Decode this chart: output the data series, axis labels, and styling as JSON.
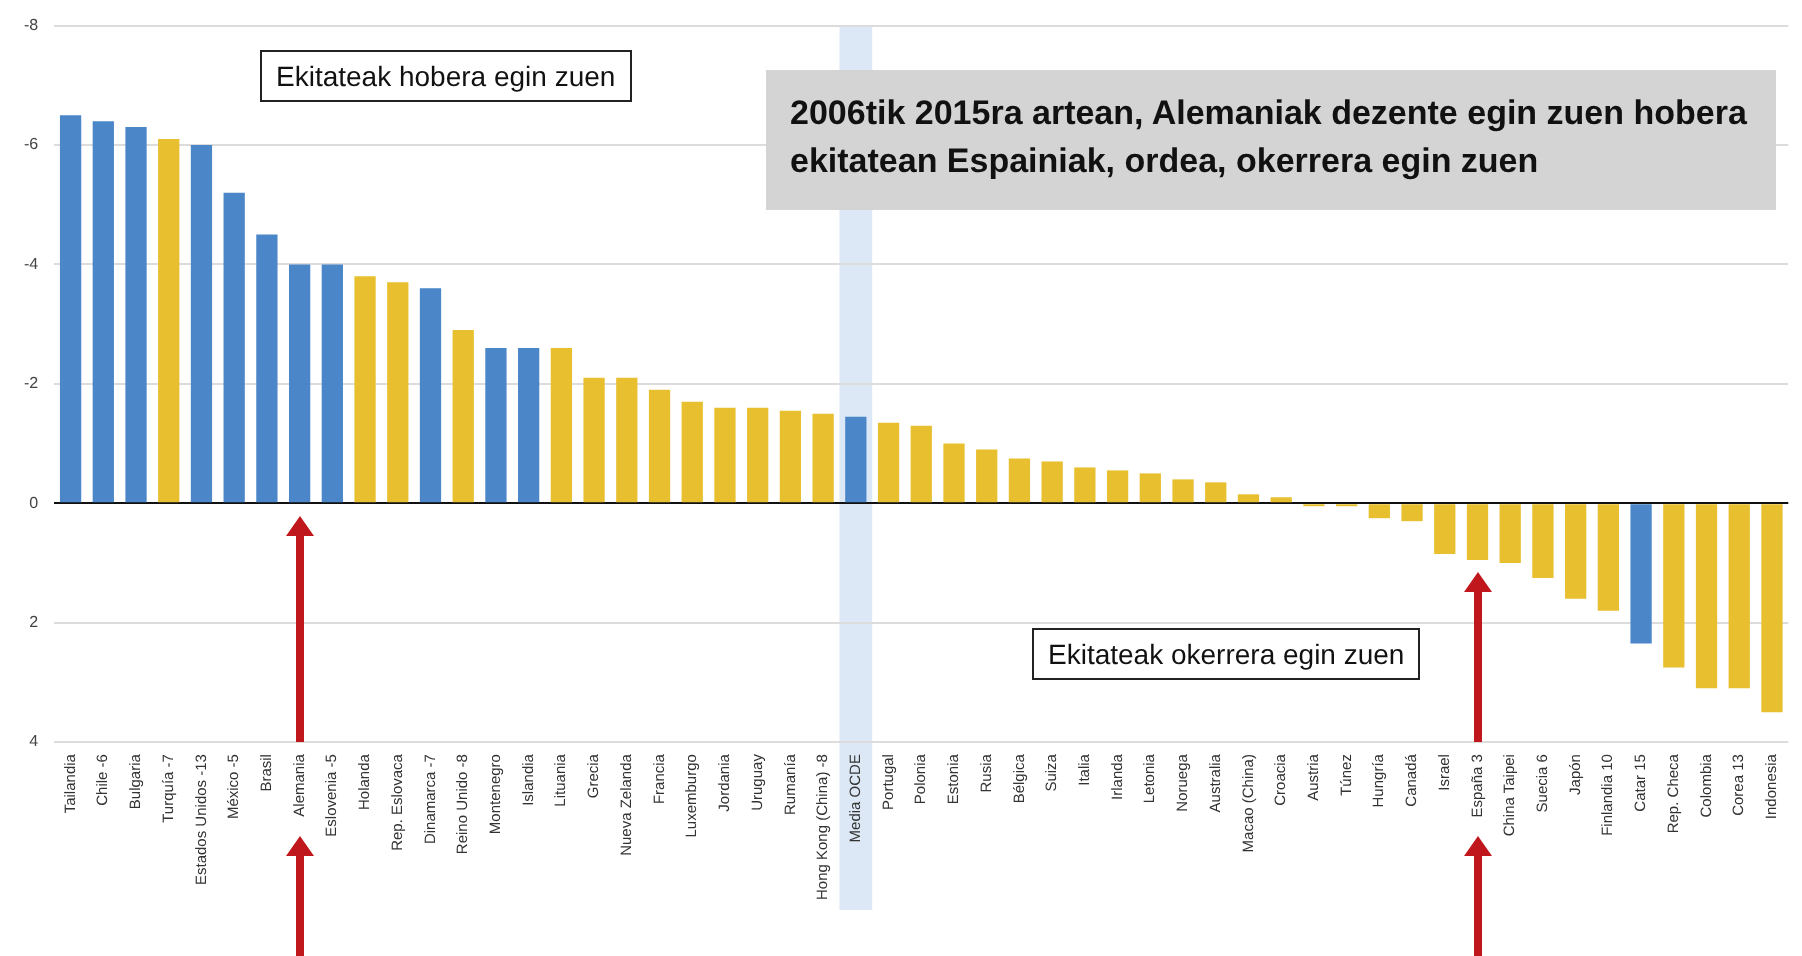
{
  "chart_data": {
    "type": "bar",
    "title": "2006tik 2015ra artean, Alemaniak dezente egin zuen hobera ekitatean Espainiak, ordea, okerrera egin zuen",
    "categories": [
      "Tailandia",
      "Chile -6",
      "Bulgaria",
      "Turquía -7",
      "Estados Unidos -13",
      "México -5",
      "Brasil",
      "Alemania",
      "Eslovenia -5",
      "Holanda",
      "Rep. Eslovaca",
      "Dinamarca -7",
      "Reino Unido -8",
      "Montenegro",
      "Islandia",
      "Lituania",
      "Grecia",
      "Nueva Zelanda",
      "Francia",
      "Luxemburgo",
      "Jordania",
      "Uruguay",
      "Rumanía",
      "Hong Kong (China) -8",
      "Media OCDE",
      "Portugal",
      "Polonia",
      "Estonia",
      "Rusia",
      "Bélgica",
      "Suiza",
      "Italia",
      "Irlanda",
      "Letonia",
      "Noruega",
      "Australia",
      "Macao (China)",
      "Croacia",
      "Austria",
      "Túnez",
      "Hungría",
      "Canadá",
      "Israel",
      "España 3",
      "China Taipei",
      "Suecia 6",
      "Japón",
      "Finlandia 10",
      "Catar 15",
      "Rep. Checa",
      "Colombia",
      "Corea 13",
      "Indonesia"
    ],
    "values": [
      -6.5,
      -6.4,
      -6.3,
      -6.1,
      -6.0,
      -5.2,
      -4.5,
      -4.0,
      -4.0,
      -3.8,
      -3.7,
      -3.6,
      -2.9,
      -2.6,
      -2.6,
      -2.6,
      -2.1,
      -2.1,
      -1.9,
      -1.7,
      -1.6,
      -1.6,
      -1.55,
      -1.5,
      -1.45,
      -1.35,
      -1.3,
      -1.0,
      -0.9,
      -0.75,
      -0.7,
      -0.6,
      -0.55,
      -0.5,
      -0.4,
      -0.35,
      -0.15,
      -0.1,
      0.05,
      0.05,
      0.25,
      0.3,
      0.85,
      0.95,
      1.0,
      1.25,
      1.6,
      1.8,
      2.35,
      2.75,
      3.1,
      3.1,
      3.5
    ],
    "colors": [
      "#4a86c8",
      "#4a86c8",
      "#4a86c8",
      "#e8bf2e",
      "#4a86c8",
      "#4a86c8",
      "#4a86c8",
      "#4a86c8",
      "#4a86c8",
      "#e8bf2e",
      "#e8bf2e",
      "#4a86c8",
      "#e8bf2e",
      "#4a86c8",
      "#4a86c8",
      "#e8bf2e",
      "#e8bf2e",
      "#e8bf2e",
      "#e8bf2e",
      "#e8bf2e",
      "#e8bf2e",
      "#e8bf2e",
      "#e8bf2e",
      "#e8bf2e",
      "#4a86c8",
      "#e8bf2e",
      "#e8bf2e",
      "#e8bf2e",
      "#e8bf2e",
      "#e8bf2e",
      "#e8bf2e",
      "#e8bf2e",
      "#e8bf2e",
      "#e8bf2e",
      "#e8bf2e",
      "#e8bf2e",
      "#e8bf2e",
      "#e8bf2e",
      "#e8bf2e",
      "#e8bf2e",
      "#e8bf2e",
      "#e8bf2e",
      "#e8bf2e",
      "#e8bf2e",
      "#e8bf2e",
      "#e8bf2e",
      "#e8bf2e",
      "#e8bf2e",
      "#4a86c8",
      "#e8bf2e",
      "#e8bf2e",
      "#e8bf2e",
      "#e8bf2e"
    ],
    "ylim": [
      4,
      -8
    ],
    "yticks": [
      -8,
      -6,
      -4,
      -2,
      0,
      2,
      4
    ],
    "grid": "y",
    "legend": false,
    "bands": [
      {
        "axis": "x",
        "from": "Media OCDE",
        "to": "Media OCDE",
        "color": "#dce8f5"
      }
    ],
    "annotations": [
      "Ekitateak hobera egin zuen",
      "Ekitateak okerrera egin zuen"
    ]
  }
}
